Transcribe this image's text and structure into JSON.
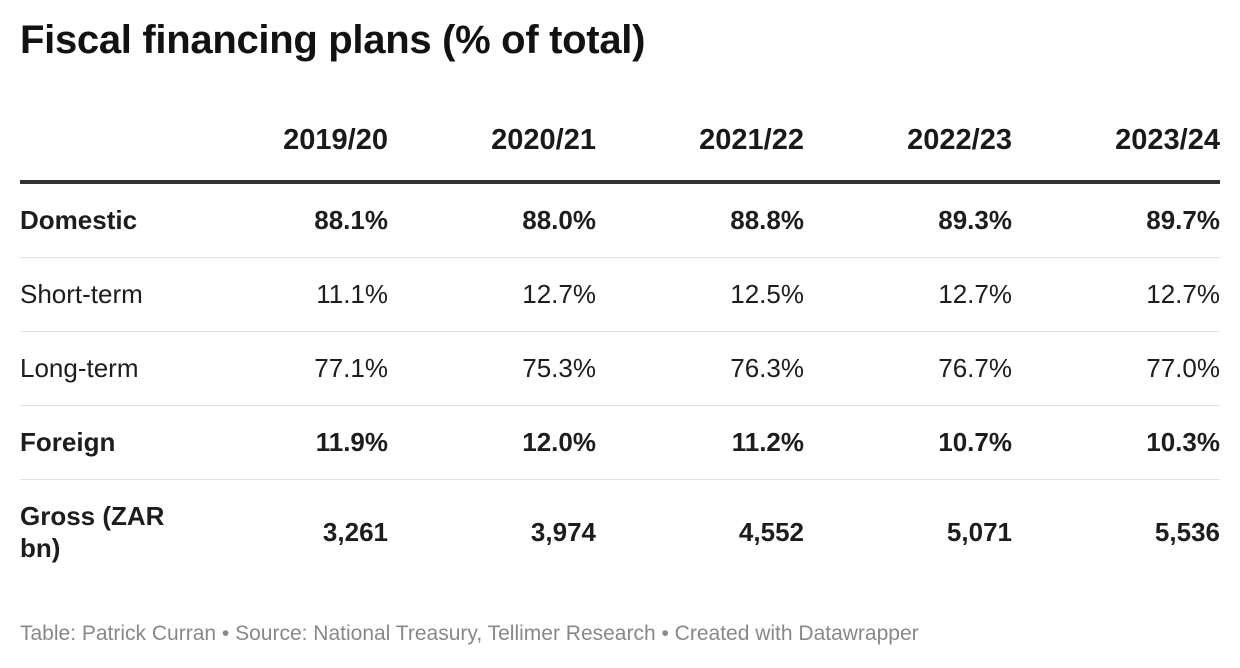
{
  "title": "Fiscal financing plans (% of total)",
  "columns": [
    "",
    "2019/20",
    "2020/21",
    "2021/22",
    "2022/23",
    "2023/24"
  ],
  "rows": [
    {
      "label": "Domestic",
      "bold": true,
      "cells": [
        "88.1%",
        "88.0%",
        "88.8%",
        "89.3%",
        "89.7%"
      ]
    },
    {
      "label": "Short-term",
      "bold": false,
      "cells": [
        "11.1%",
        "12.7%",
        "12.5%",
        "12.7%",
        "12.7%"
      ]
    },
    {
      "label": "Long-term",
      "bold": false,
      "cells": [
        "77.1%",
        "75.3%",
        "76.3%",
        "76.7%",
        "77.0%"
      ]
    },
    {
      "label": "Foreign",
      "bold": true,
      "cells": [
        "11.9%",
        "12.0%",
        "11.2%",
        "10.7%",
        "10.3%"
      ]
    },
    {
      "label": "Gross (ZAR bn)",
      "bold": true,
      "cells": [
        "3,261",
        "3,974",
        "4,552",
        "5,071",
        "5,536"
      ]
    }
  ],
  "footer": "Table: Patrick Curran • Source: National Treasury, Tellimer Research • Created with Datawrapper",
  "chart_data": {
    "type": "table",
    "title": "Fiscal financing plans (% of total)",
    "columns": [
      "2019/20",
      "2020/21",
      "2021/22",
      "2022/23",
      "2023/24"
    ],
    "series": [
      {
        "name": "Domestic",
        "values": [
          88.1,
          88.0,
          88.8,
          89.3,
          89.7
        ]
      },
      {
        "name": "Short-term",
        "values": [
          11.1,
          12.7,
          12.5,
          12.7,
          12.7
        ]
      },
      {
        "name": "Long-term",
        "values": [
          77.1,
          75.3,
          76.3,
          76.7,
          77.0
        ]
      },
      {
        "name": "Foreign",
        "values": [
          11.9,
          12.0,
          11.2,
          10.7,
          10.3
        ]
      },
      {
        "name": "Gross (ZAR bn)",
        "values": [
          3261,
          3974,
          4552,
          5071,
          5536
        ]
      }
    ]
  },
  "colors": {
    "text": "#1a1a1a",
    "header_rule": "#333333",
    "row_rule": "#e2e2e2",
    "footer_text": "#888888"
  }
}
